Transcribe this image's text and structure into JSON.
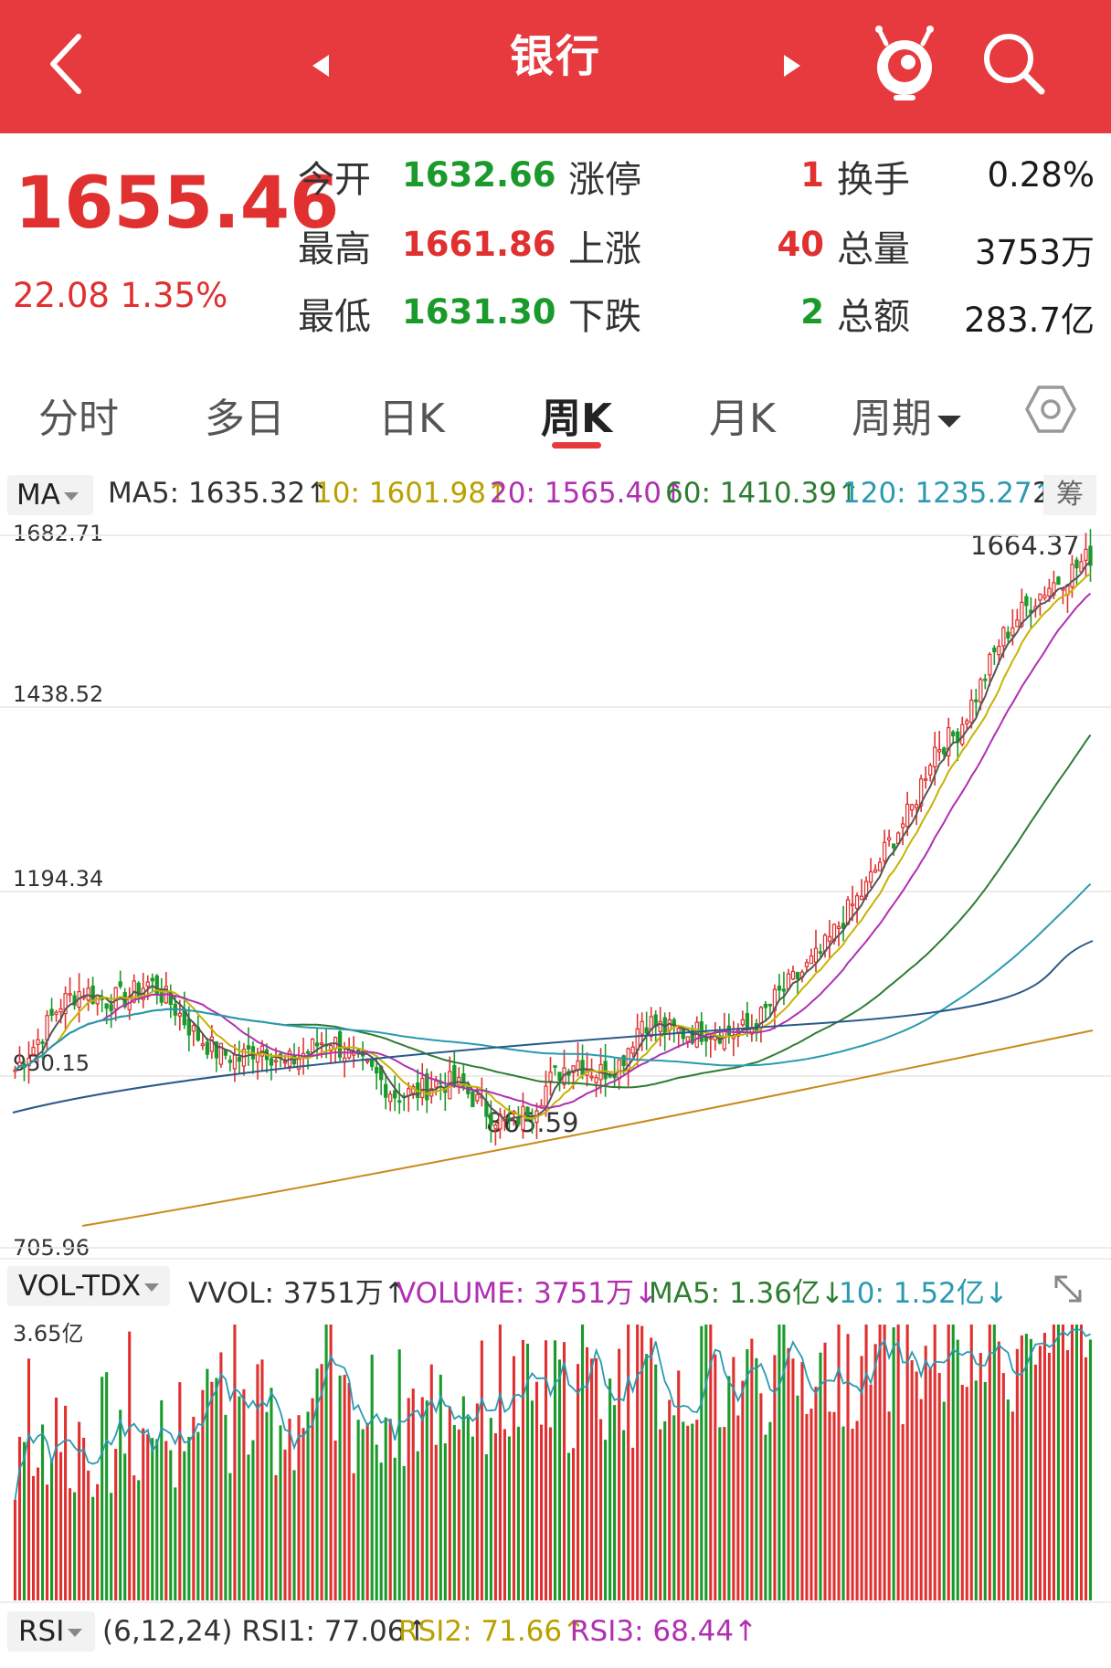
{
  "header": {
    "title": "银行",
    "back_icon": "chevron-left-icon",
    "prev_icon": "triangle-left-icon",
    "next_icon": "triangle-right-icon",
    "mascot_icon": "mascot-icon",
    "search_icon": "search-icon",
    "color": "#e63a3f"
  },
  "quote": {
    "price": "1655.46",
    "change": "22.08 1.35%",
    "stats": [
      {
        "label": "今开",
        "value": "1632.66",
        "color": "green"
      },
      {
        "label": "最高",
        "value": "1661.86",
        "color": "red"
      },
      {
        "label": "最低",
        "value": "1631.30",
        "color": "green"
      }
    ],
    "counts": [
      {
        "label": "涨停",
        "value": "1",
        "color": "red"
      },
      {
        "label": "上涨",
        "value": "40",
        "color": "red"
      },
      {
        "label": "下跌",
        "value": "2",
        "color": "green"
      }
    ],
    "totals": [
      {
        "label": "换手",
        "value": "0.28%"
      },
      {
        "label": "总量",
        "value": "3753万"
      },
      {
        "label": "总额",
        "value": "283.7亿"
      }
    ]
  },
  "tabs": [
    {
      "label": "分时",
      "active": false
    },
    {
      "label": "多日",
      "active": false
    },
    {
      "label": "日K",
      "active": false
    },
    {
      "label": "周K",
      "active": true
    },
    {
      "label": "月K",
      "active": false
    },
    {
      "label": "周期",
      "active": false
    }
  ],
  "ma_legend": {
    "button": "MA",
    "items": [
      {
        "text": "MA5: 1635.32↑",
        "color": "#333333"
      },
      {
        "text": "10: 1601.98↑",
        "color": "#b8a000"
      },
      {
        "text": "20: 1565.40↑",
        "color": "#b030b0"
      },
      {
        "text": "60: 1410.39↑",
        "color": "#2e7d32"
      },
      {
        "text": "120: 1235.27↑",
        "color": "#2a9ab0"
      },
      {
        "text": "2",
        "color": "#333333"
      }
    ],
    "chou_label": "筹"
  },
  "price_axis": [
    "1682.71",
    "1438.52",
    "1194.34",
    "950.15",
    "705.96"
  ],
  "annotations": {
    "high": "1664.37",
    "low": "865.59"
  },
  "vol_legend": {
    "button": "VOL-TDX",
    "items": [
      {
        "text": "VVOL: 3751万↑",
        "color": "#333333"
      },
      {
        "text": "VOLUME: 3751万↓",
        "color": "#b030b0"
      },
      {
        "text": "MA5: 1.36亿↓",
        "color": "#2e7d32"
      },
      {
        "text": "10: 1.52亿↓",
        "color": "#2a9ab0"
      }
    ],
    "axis_top": "3.65亿"
  },
  "rsi_legend": {
    "button": "RSI",
    "items": [
      {
        "text": "(6,12,24) RSI1: 77.06↑",
        "color": "#333333"
      },
      {
        "text": "RSI2: 71.66↑",
        "color": "#b8a000"
      },
      {
        "text": "RSI3: 68.44↑",
        "color": "#b030b0"
      }
    ]
  },
  "colors": {
    "up": "#e03030",
    "down": "#1a9a2a"
  },
  "chart_data": {
    "type": "candlestick",
    "period": "weekly",
    "ylim": [
      705.96,
      1682.71
    ],
    "y_ticks": [
      1682.71,
      1438.52,
      1194.34,
      950.15,
      705.96
    ],
    "annotated_high": 1664.37,
    "annotated_low": 865.59,
    "close_path": [
      950,
      990,
      1040,
      1060,
      1045,
      1050,
      1070,
      1040,
      1000,
      975,
      965,
      985,
      955,
      975,
      995,
      965,
      945,
      915,
      920,
      935,
      925,
      895,
      875,
      895,
      940,
      965,
      945,
      960,
      1020,
      1005,
      1000,
      1005,
      1000,
      1010,
      1050,
      1080,
      1110,
      1160,
      1200,
      1260,
      1305,
      1390,
      1410,
      1470,
      1540,
      1580,
      1610,
      1630,
      1655
    ],
    "volume_ylim_top": "3.65亿"
  }
}
